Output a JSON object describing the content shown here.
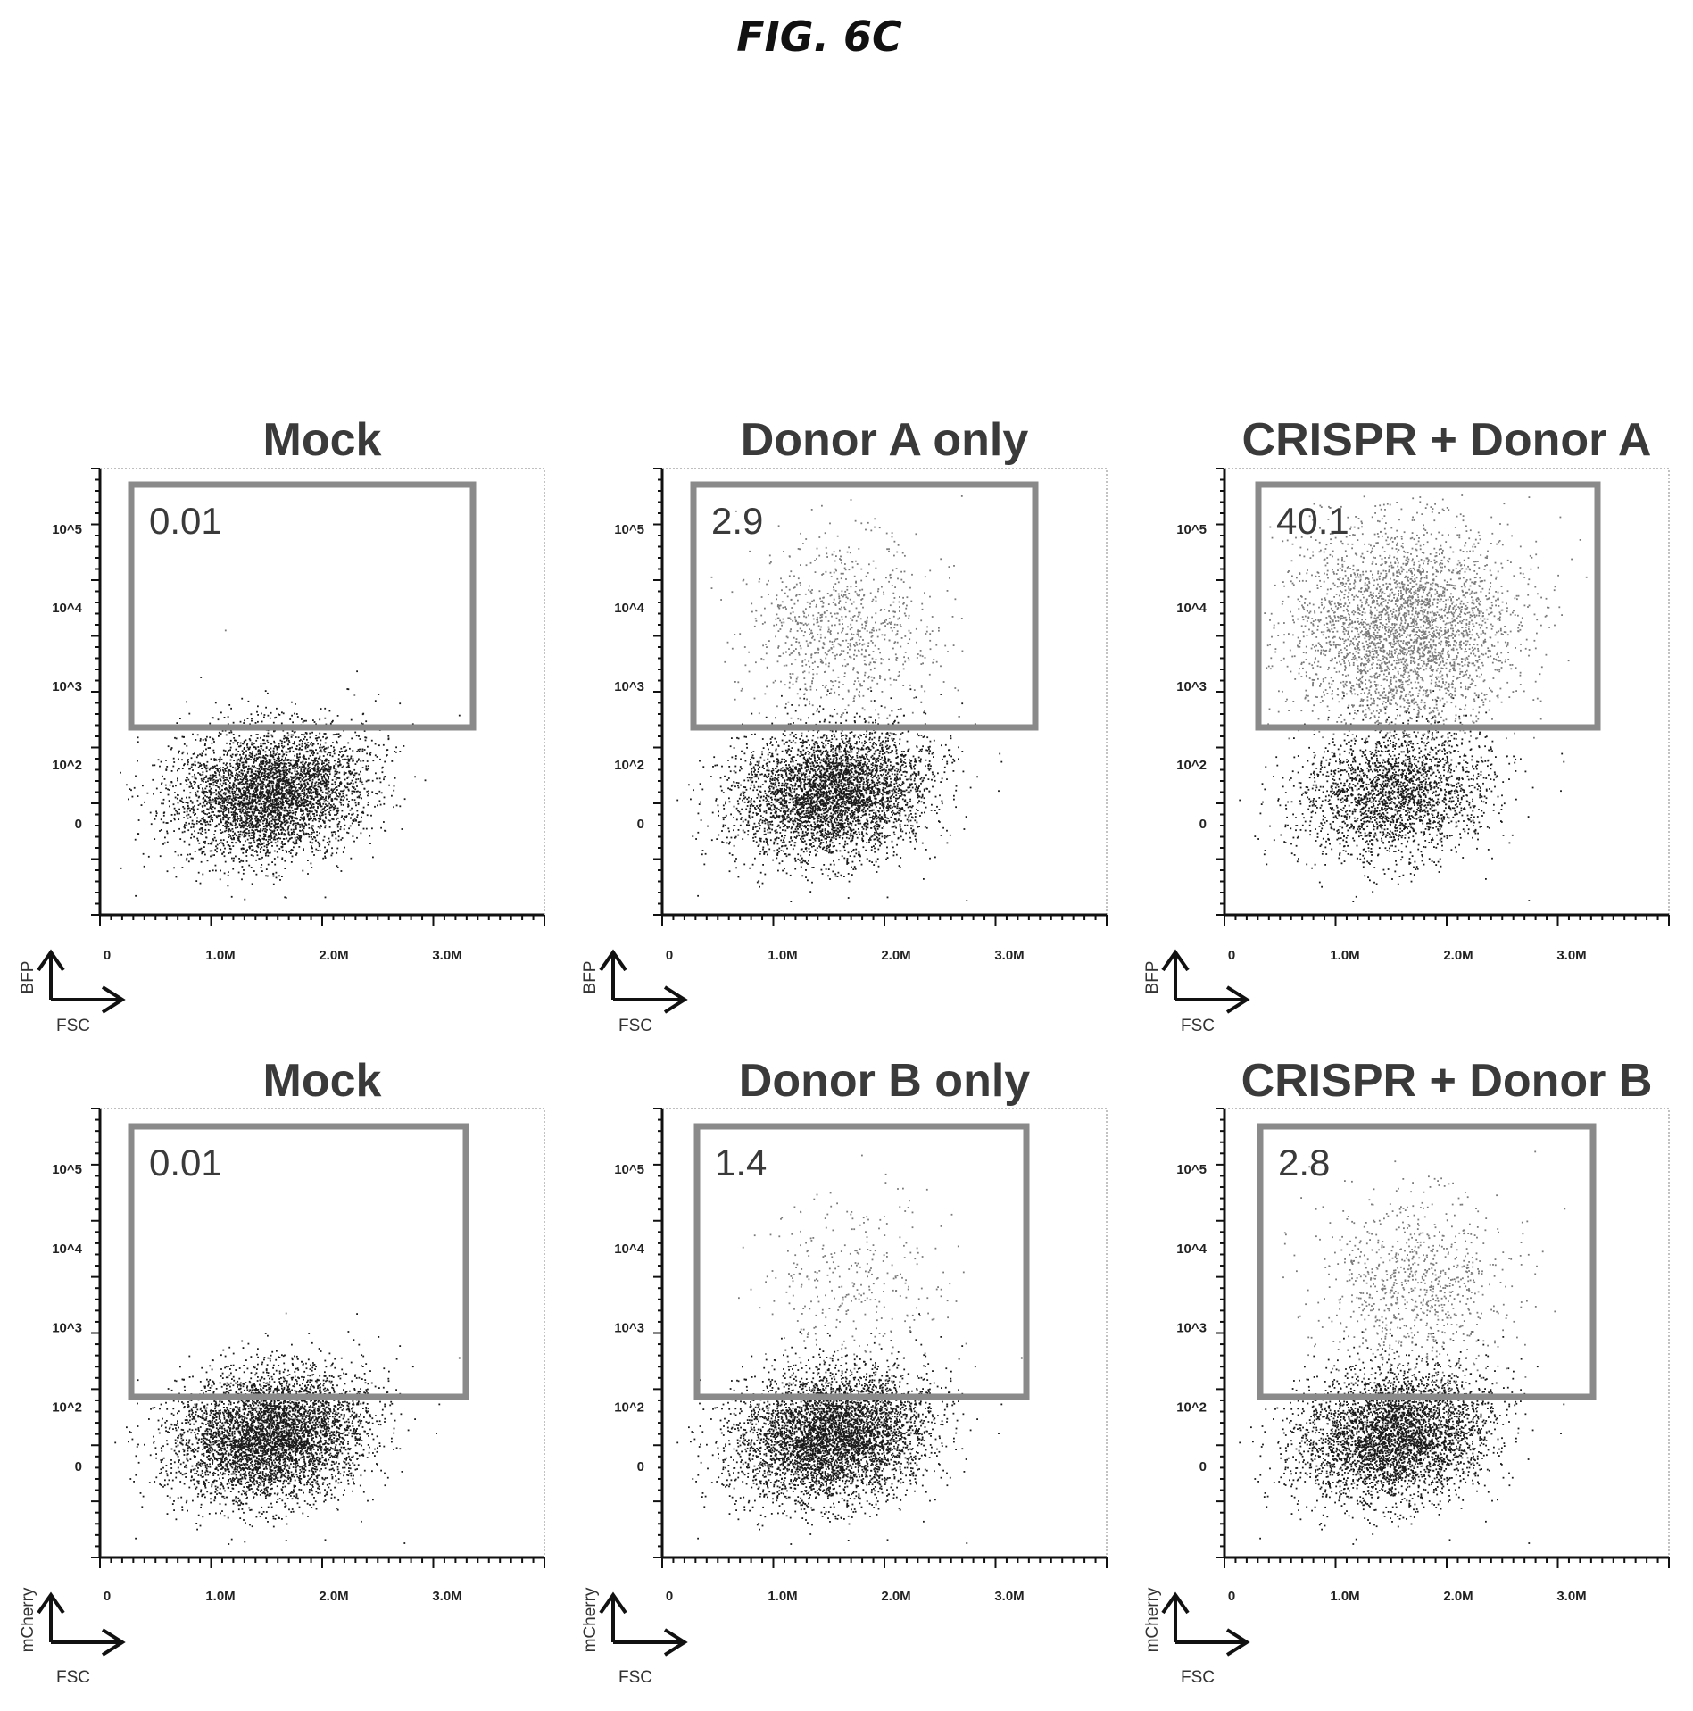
{
  "figure_title": "FIG. 6C",
  "chart_data": [
    {
      "type": "scatter",
      "title": "Mock",
      "gate_percent": "0.01",
      "x_axis_name": "FSC",
      "y_axis_name": "BFP",
      "x_ticks": [
        "0",
        "1.0M",
        "2.0M",
        "3.0M"
      ],
      "y_ticks": [
        "10^5",
        "10^4",
        "10^3",
        "10^2",
        "0"
      ],
      "negative_population": {
        "center_fsc": 1.5,
        "center_level": 0.3,
        "count": 4200
      },
      "positive_population": {
        "center_fsc": 1.6,
        "center_level": 2.4,
        "count": 2
      }
    },
    {
      "type": "scatter",
      "title": "Donor A only",
      "gate_percent": "2.9",
      "x_axis_name": "FSC",
      "y_axis_name": "BFP",
      "x_ticks": [
        "0",
        "1.0M",
        "2.0M",
        "3.0M"
      ],
      "y_ticks": [
        "10^5",
        "10^4",
        "10^3",
        "10^2",
        "0"
      ],
      "negative_population": {
        "center_fsc": 1.5,
        "center_level": 0.3,
        "count": 4200
      },
      "positive_population": {
        "center_fsc": 1.5,
        "center_level": 2.0,
        "count": 900
      }
    },
    {
      "type": "scatter",
      "title": "CRISPR + Donor A",
      "gate_percent": "40.1",
      "x_axis_name": "FSC",
      "y_axis_name": "BFP",
      "x_ticks": [
        "0",
        "1.0M",
        "2.0M",
        "3.0M"
      ],
      "y_ticks": [
        "10^5",
        "10^4",
        "10^3",
        "10^2",
        "0"
      ],
      "negative_population": {
        "center_fsc": 1.5,
        "center_level": 0.25,
        "count": 2400
      },
      "positive_population": {
        "center_fsc": 1.5,
        "center_level": 2.0,
        "count": 3400
      }
    },
    {
      "type": "scatter",
      "title": "Mock",
      "gate_percent": "0.01",
      "x_axis_name": "FSC",
      "y_axis_name": "mCherry",
      "x_ticks": [
        "0",
        "1.0M",
        "2.0M",
        "3.0M"
      ],
      "y_ticks": [
        "10^5",
        "10^4",
        "10^3",
        "10^2",
        "0"
      ],
      "negative_population": {
        "center_fsc": 1.5,
        "center_level": 0.35,
        "count": 4800
      },
      "positive_population": {
        "center_fsc": 1.6,
        "center_level": 2.0,
        "count": 2
      }
    },
    {
      "type": "scatter",
      "title": "Donor B only",
      "gate_percent": "1.4",
      "x_axis_name": "FSC",
      "y_axis_name": "mCherry",
      "x_ticks": [
        "0",
        "1.0M",
        "2.0M",
        "3.0M"
      ],
      "y_ticks": [
        "10^5",
        "10^4",
        "10^3",
        "10^2",
        "0"
      ],
      "negative_population": {
        "center_fsc": 1.5,
        "center_level": 0.35,
        "count": 4800
      },
      "positive_population": {
        "center_fsc": 1.6,
        "center_level": 2.0,
        "count": 320
      }
    },
    {
      "type": "scatter",
      "title": "CRISPR + Donor B",
      "gate_percent": "2.8",
      "x_axis_name": "FSC",
      "y_axis_name": "mCherry",
      "x_ticks": [
        "0",
        "1.0M",
        "2.0M",
        "3.0M"
      ],
      "y_ticks": [
        "10^5",
        "10^4",
        "10^3",
        "10^2",
        "0"
      ],
      "negative_population": {
        "center_fsc": 1.5,
        "center_level": 0.35,
        "count": 4000
      },
      "positive_population": {
        "center_fsc": 1.6,
        "center_level": 2.0,
        "count": 900
      }
    }
  ]
}
